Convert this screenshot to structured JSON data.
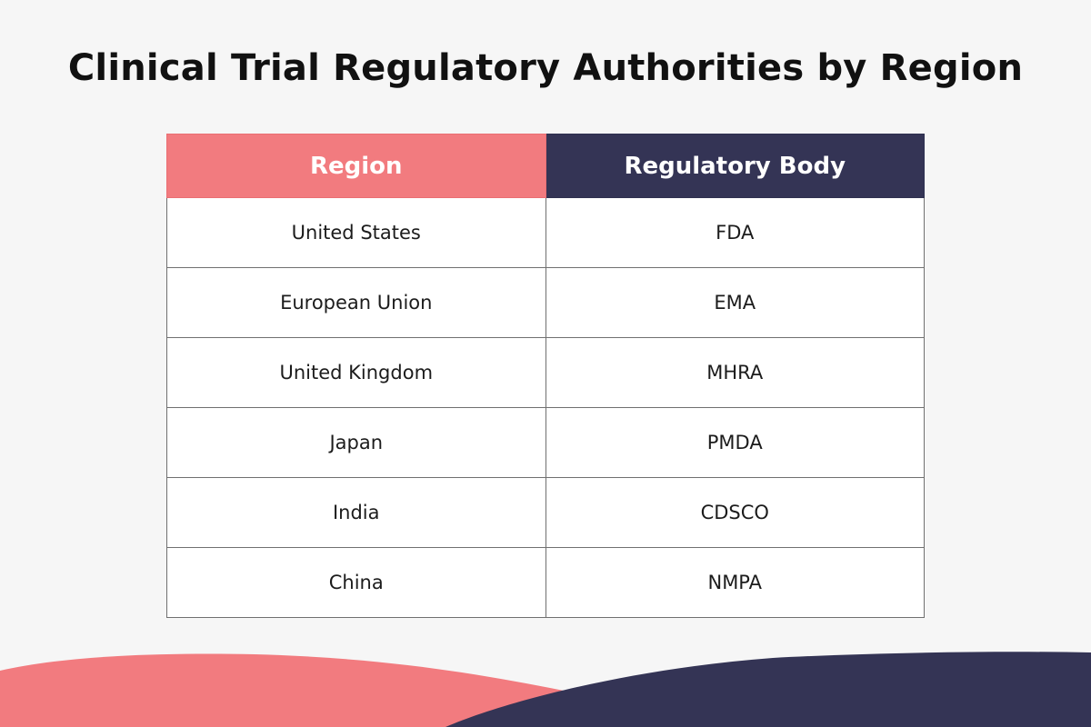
{
  "title": "Clinical Trial Regulatory Authorities by Region",
  "table": {
    "headers": [
      "Region",
      "Regulatory Body"
    ],
    "rows": [
      [
        "United States",
        "FDA"
      ],
      [
        "European Union",
        "EMA"
      ],
      [
        "United Kingdom",
        "MHRA"
      ],
      [
        "Japan",
        "PMDA"
      ],
      [
        "India",
        "CDSCO"
      ],
      [
        "China",
        "NMPA"
      ]
    ]
  },
  "colors": {
    "background": "#f6f6f6",
    "accent_coral": "#f27b7f",
    "accent_navy": "#343455",
    "cell_background": "#ffffff",
    "border": "#707070"
  }
}
